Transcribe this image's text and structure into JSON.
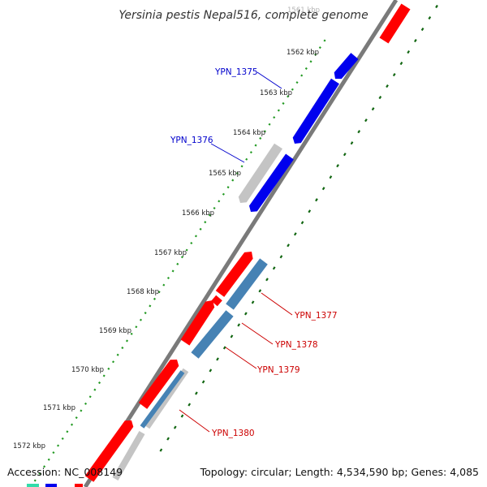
{
  "title": "Yersinia pestis Nepal516, complete genome",
  "kbp_ticks": [
    "1561 kbp",
    "1562 kbp",
    "1563 kbp",
    "1564 kbp",
    "1565 kbp",
    "1566 kbp",
    "1567 kbp",
    "1568 kbp",
    "1569 kbp",
    "1570 kbp",
    "1571 kbp",
    "1572 kbp"
  ],
  "labels": [
    {
      "text": "YPN_1375",
      "color": "#0000cc"
    },
    {
      "text": "YPN_1376",
      "color": "#0000cc"
    },
    {
      "text": "YPN_1377",
      "color": "#cc0000"
    },
    {
      "text": "YPN_1378",
      "color": "#cc0000"
    },
    {
      "text": "YPN_1379",
      "color": "#cc0000"
    },
    {
      "text": "YPN_1380",
      "color": "#cc0000"
    }
  ],
  "colors": {
    "forward": "#ff0000",
    "reverse": "#0000ee",
    "pseudo": "#c4c4c4",
    "rna": "#4682b4",
    "backbone": "#7a7a7a",
    "dots_outer": "#229922",
    "dots_inner": "#116611",
    "extra": "#33ddaa"
  },
  "footer": {
    "accession": "Accession: NC_008149",
    "stats": "Topology: circular; Length: 4,534,590 bp; Genes: 4,085"
  }
}
